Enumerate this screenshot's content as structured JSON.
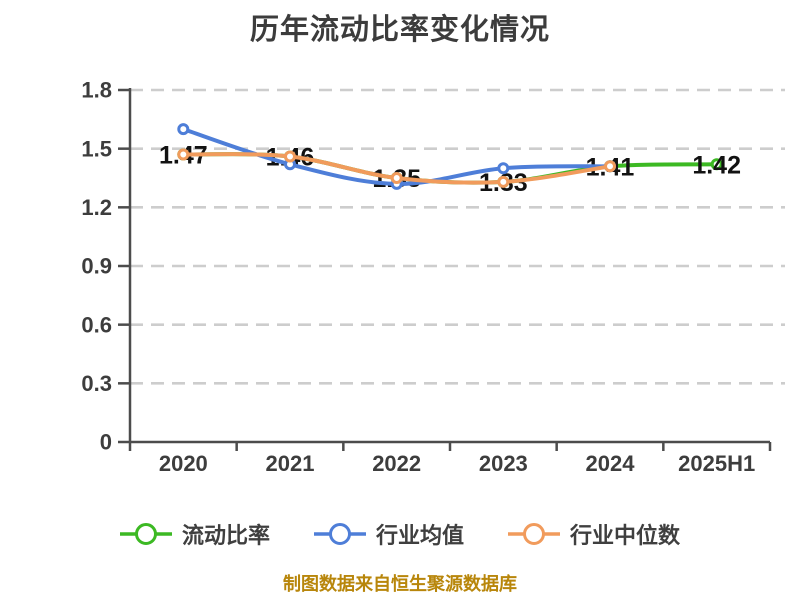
{
  "footer": "制图数据来自恒生聚源数据库",
  "colors": {
    "background": "#FFFFFF",
    "grid": "#CDCDCD",
    "axis": "#4C4C4C",
    "title": "#3C3C3C",
    "tick_label": "#3D3D3D",
    "data_label": "#121212",
    "footer": "#B8860B",
    "series_green": "#3CB923",
    "series_blue": "#4E7ED8",
    "series_orange": "#F19B5C"
  },
  "chart_data": {
    "type": "line",
    "title": "历年流动比率变化情况",
    "categories": [
      "2020",
      "2021",
      "2022",
      "2023",
      "2024",
      "2025H1"
    ],
    "series": [
      {
        "name": "流动比率",
        "color": "#3CB923",
        "marker": "circle",
        "show_labels": true,
        "values": [
          1.47,
          1.46,
          1.35,
          1.33,
          1.41,
          1.42
        ]
      },
      {
        "name": "行业均值",
        "color": "#4E7ED8",
        "marker": "circle",
        "show_labels": false,
        "values": [
          1.6,
          1.42,
          1.32,
          1.4,
          1.41,
          null
        ]
      },
      {
        "name": "行业中位数",
        "color": "#F19B5C",
        "marker": "circle",
        "show_labels": false,
        "values": [
          1.47,
          1.46,
          1.35,
          1.33,
          1.41,
          null
        ]
      }
    ],
    "xlabel": "",
    "ylabel": "",
    "ylim": [
      0,
      1.8
    ],
    "yticks": [
      0,
      0.3,
      0.6,
      0.9,
      1.2,
      1.5,
      1.8
    ],
    "grid": "horizontal-dashed",
    "smooth": true,
    "legend_position": "bottom"
  }
}
